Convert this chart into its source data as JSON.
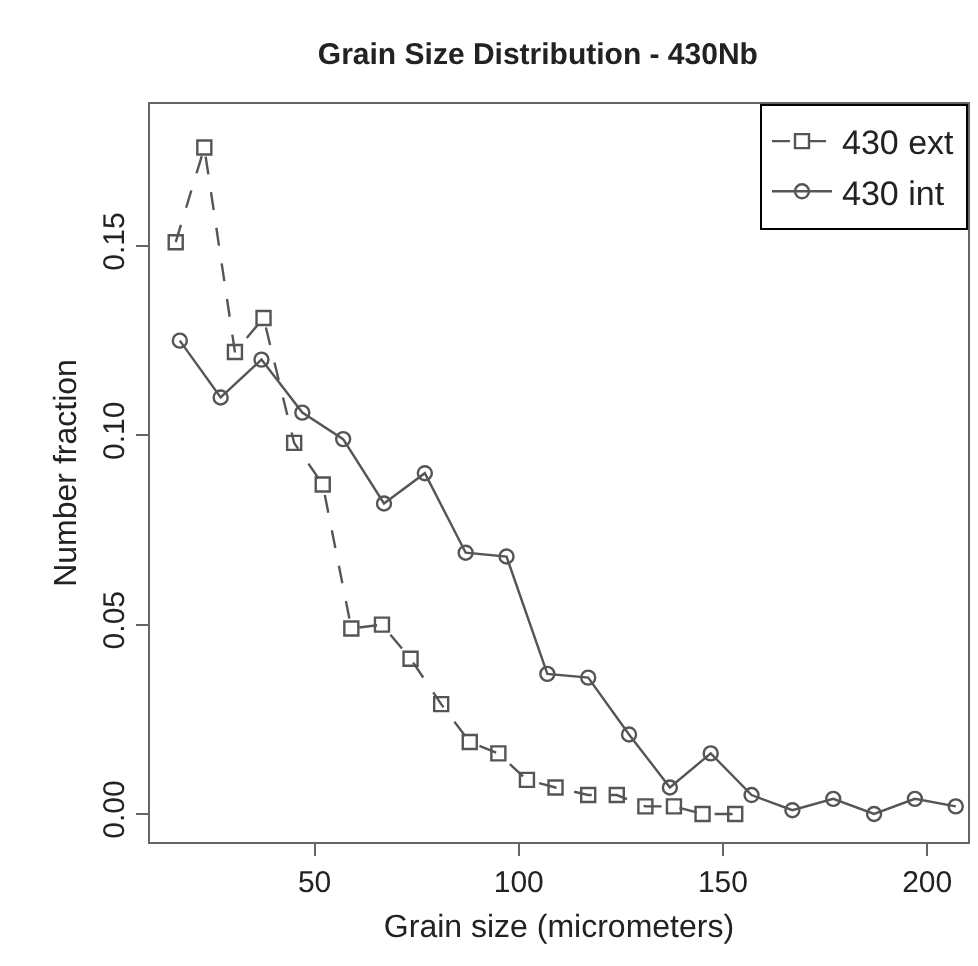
{
  "chart_data": {
    "type": "line",
    "title": "Grain Size Distribution - 430Nb",
    "xlabel": "Grain size (micrometers)",
    "ylabel": "Number fraction",
    "xlim": [
      9.7,
      210
    ],
    "xticks": [
      50,
      100,
      150,
      200
    ],
    "ylim": [
      -0.0074,
      0.1875
    ],
    "yticks": [
      {
        "value": 0,
        "label": "0.00"
      },
      {
        "value": 0.05,
        "label": "0.05"
      },
      {
        "value": 0.1,
        "label": "0.10"
      },
      {
        "value": 0.15,
        "label": "0.15"
      }
    ],
    "grid": false,
    "legend": "top right",
    "series": [
      {
        "name": "430 ext",
        "color": "#555555",
        "marker": "square",
        "line_style": "dashed",
        "x": [
          16,
          23,
          30.5,
          37.5,
          45,
          52,
          59,
          66.5,
          73.5,
          81,
          88,
          95,
          102,
          109,
          117,
          124,
          131,
          138,
          145,
          153
        ],
        "values": [
          0.151,
          0.176,
          0.122,
          0.131,
          0.098,
          0.087,
          0.049,
          0.05,
          0.041,
          0.029,
          0.019,
          0.016,
          0.009,
          0.007,
          0.005,
          0.005,
          0.002,
          0.002,
          0.0,
          0.0
        ]
      },
      {
        "name": "430 int",
        "color": "#555555",
        "marker": "circle",
        "line_style": "solid",
        "x": [
          17,
          27,
          37,
          47,
          57,
          67,
          77,
          87,
          97,
          107,
          117,
          127,
          137,
          147,
          157,
          167,
          177,
          187,
          197,
          207
        ],
        "values": [
          0.125,
          0.11,
          0.12,
          0.106,
          0.099,
          0.082,
          0.09,
          0.069,
          0.068,
          0.037,
          0.036,
          0.021,
          0.007,
          0.016,
          0.005,
          0.001,
          0.004,
          0.0,
          0.004,
          0.002
        ]
      }
    ]
  }
}
